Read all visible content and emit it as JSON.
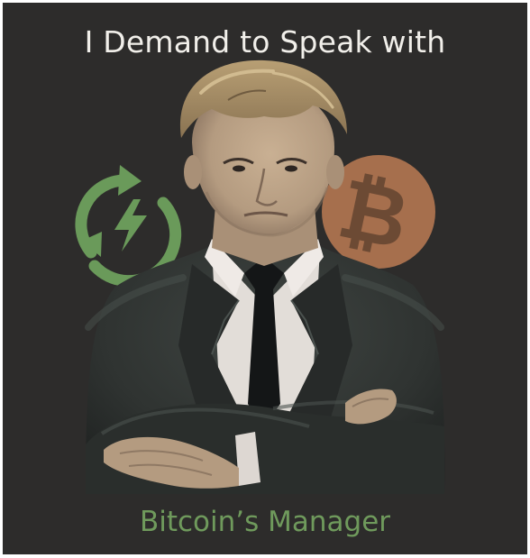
{
  "poster": {
    "headline": "I Demand to Speak with",
    "subline": "Bitcoin’s Manager"
  },
  "icons": {
    "left": "green-energy-refresh-icon",
    "right": "bitcoin-coin-icon"
  },
  "colors": {
    "background": "#2d2c2b",
    "headline": "#f1efea",
    "subline": "#6f9a5c",
    "energy_icon": "#6a9a5a",
    "bitcoin_coin": "#a66f4d",
    "suit": "#2f3331",
    "shirt": "#e2ddd8",
    "tie": "#141617",
    "hair": "#a08a63",
    "skin": "#bea58a"
  }
}
